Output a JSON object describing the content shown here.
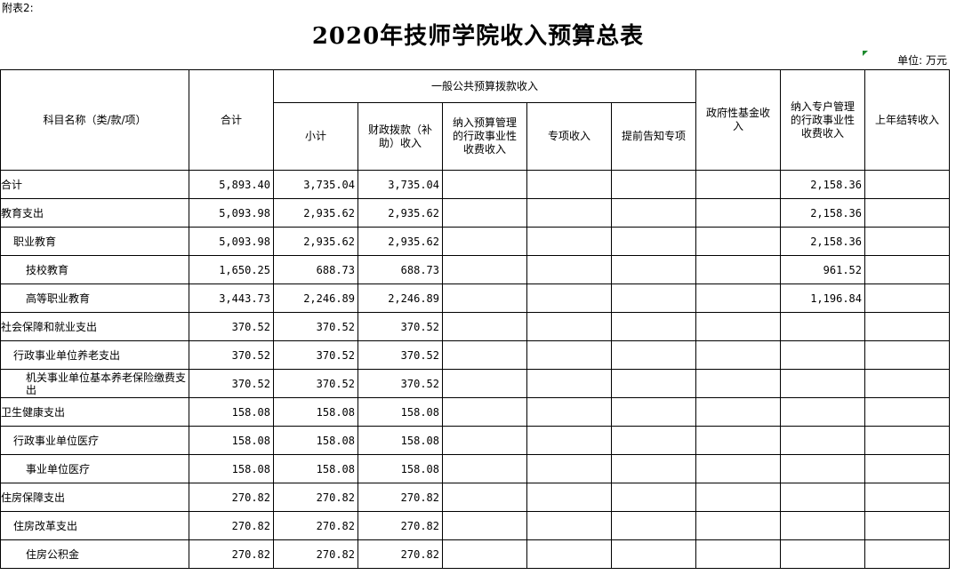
{
  "appendix_label": "附表2:",
  "title": "2020年技师学院收入预算总表",
  "unit_label": "单位: 万元",
  "headers": {
    "subject": "科目名称（类/款/项）",
    "total": "合计",
    "general_group": "一般公共预算拨款收入",
    "subtotal": "小计",
    "fiscal": "财政拨款（补助）收入",
    "admin_fee": "纳入预算管理的行政事业性收费收入",
    "special": "专项收入",
    "advance": "提前告知专项",
    "gov_fund": "政府性基金收入",
    "special_account": "纳入专户管理的行政事业性收费收入",
    "carryover": "上年结转收入"
  },
  "rows": [
    {
      "name": "合计",
      "level": 0,
      "total": "5,893.40",
      "subtotal": "3,735.04",
      "fiscal": "3,735.04",
      "special_account": "2,158.36"
    },
    {
      "name": "教育支出",
      "level": 0,
      "total": "5,093.98",
      "subtotal": "2,935.62",
      "fiscal": "2,935.62",
      "special_account": "2,158.36"
    },
    {
      "name": "职业教育",
      "level": 1,
      "total": "5,093.98",
      "subtotal": "2,935.62",
      "fiscal": "2,935.62",
      "special_account": "2,158.36"
    },
    {
      "name": "技校教育",
      "level": 2,
      "total": "1,650.25",
      "subtotal": "688.73",
      "fiscal": "688.73",
      "special_account": "961.52"
    },
    {
      "name": "高等职业教育",
      "level": 2,
      "total": "3,443.73",
      "subtotal": "2,246.89",
      "fiscal": "2,246.89",
      "special_account": "1,196.84"
    },
    {
      "name": "社会保障和就业支出",
      "level": 0,
      "total": "370.52",
      "subtotal": "370.52",
      "fiscal": "370.52",
      "special_account": ""
    },
    {
      "name": "行政事业单位养老支出",
      "level": 1,
      "total": "370.52",
      "subtotal": "370.52",
      "fiscal": "370.52",
      "special_account": ""
    },
    {
      "name": "机关事业单位基本养老保险缴费支出",
      "level": 2,
      "total": "370.52",
      "subtotal": "370.52",
      "fiscal": "370.52",
      "special_account": ""
    },
    {
      "name": "卫生健康支出",
      "level": 0,
      "total": "158.08",
      "subtotal": "158.08",
      "fiscal": "158.08",
      "special_account": ""
    },
    {
      "name": "行政事业单位医疗",
      "level": 1,
      "total": "158.08",
      "subtotal": "158.08",
      "fiscal": "158.08",
      "special_account": ""
    },
    {
      "name": "事业单位医疗",
      "level": 2,
      "total": "158.08",
      "subtotal": "158.08",
      "fiscal": "158.08",
      "special_account": ""
    },
    {
      "name": "住房保障支出",
      "level": 0,
      "total": "270.82",
      "subtotal": "270.82",
      "fiscal": "270.82",
      "special_account": ""
    },
    {
      "name": "住房改革支出",
      "level": 1,
      "total": "270.82",
      "subtotal": "270.82",
      "fiscal": "270.82",
      "special_account": ""
    },
    {
      "name": "住房公积金",
      "level": 2,
      "total": "270.82",
      "subtotal": "270.82",
      "fiscal": "270.82",
      "special_account": ""
    }
  ]
}
